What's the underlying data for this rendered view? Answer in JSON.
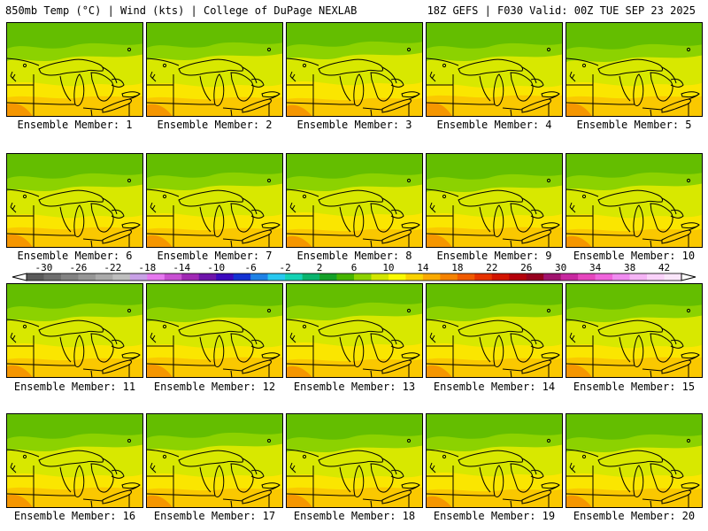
{
  "header": {
    "left": "850mb Temp (°C) | Wind (kts) | College of DuPage NEXLAB",
    "right": "18Z GEFS | F030 Valid: 00Z TUE SEP 23 2025"
  },
  "members": [
    {
      "label": "Ensemble Member: 1"
    },
    {
      "label": "Ensemble Member: 2"
    },
    {
      "label": "Ensemble Member: 3"
    },
    {
      "label": "Ensemble Member: 4"
    },
    {
      "label": "Ensemble Member: 5"
    },
    {
      "label": "Ensemble Member: 6"
    },
    {
      "label": "Ensemble Member: 7"
    },
    {
      "label": "Ensemble Member: 8"
    },
    {
      "label": "Ensemble Member: 9"
    },
    {
      "label": "Ensemble Member: 10"
    },
    {
      "label": "Ensemble Member: 11"
    },
    {
      "label": "Ensemble Member: 12"
    },
    {
      "label": "Ensemble Member: 13"
    },
    {
      "label": "Ensemble Member: 14"
    },
    {
      "label": "Ensemble Member: 15"
    },
    {
      "label": "Ensemble Member: 16"
    },
    {
      "label": "Ensemble Member: 17"
    },
    {
      "label": "Ensemble Member: 18"
    },
    {
      "label": "Ensemble Member: 19"
    },
    {
      "label": "Ensemble Member: 20"
    }
  ],
  "legend": {
    "unit": "°C",
    "min": -32,
    "max": 44,
    "tick_labels": [
      "-30",
      "-26",
      "-22",
      "-18",
      "-14",
      "-10",
      "-6",
      "-2",
      "2",
      "6",
      "10",
      "14",
      "18",
      "22",
      "26",
      "30",
      "34",
      "38",
      "42"
    ],
    "colors": [
      "#5a5a5a",
      "#6e6e6e",
      "#828282",
      "#969696",
      "#aaaaaa",
      "#bebebe",
      "#c8a0e6",
      "#e678f0",
      "#c850d2",
      "#a028b4",
      "#6e14aa",
      "#3c0abe",
      "#1432d2",
      "#1e82e6",
      "#28c8f0",
      "#14d2b4",
      "#0ab46e",
      "#14a028",
      "#46b400",
      "#8cd200",
      "#d2e600",
      "#fafa00",
      "#fad200",
      "#faaa00",
      "#f58200",
      "#f05a00",
      "#e63200",
      "#d21400",
      "#b4000a",
      "#96001e",
      "#a0146e",
      "#c828a0",
      "#e646be",
      "#f064dc",
      "#f08cf0",
      "#f5b4f5",
      "#fad2fa",
      "#fae6fa"
    ]
  }
}
